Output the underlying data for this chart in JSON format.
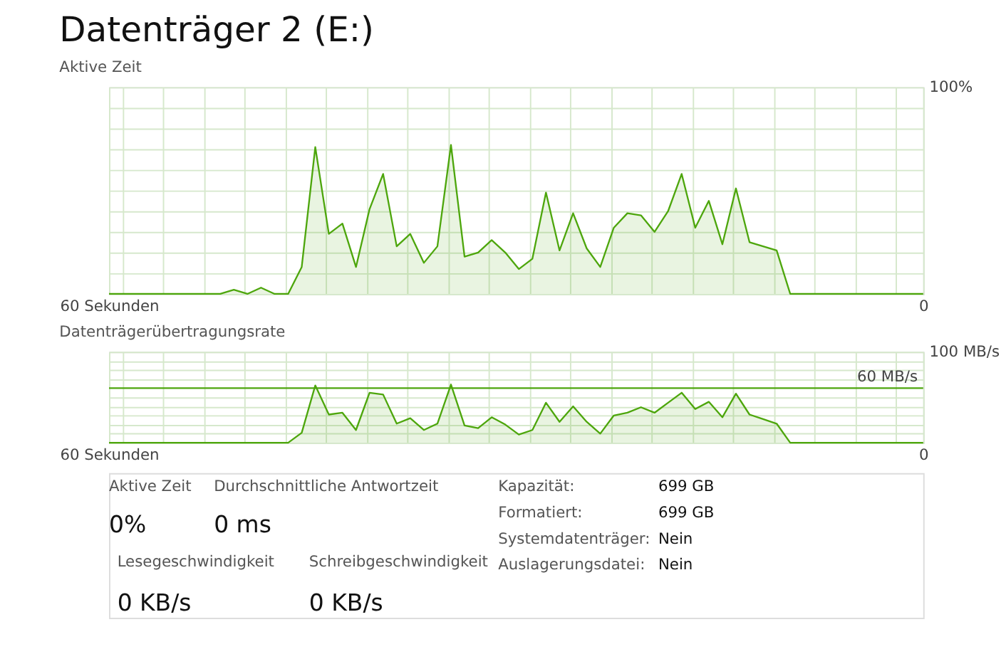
{
  "chart_data": [
    {
      "type": "area",
      "title": "Datenträger 2 (E:)",
      "subtitle": "Aktive Zeit",
      "grid": true,
      "line_style": "solid",
      "xlim": [
        60,
        0
      ],
      "xticks": [
        {
          "value": 60,
          "label": "60 Sekunden"
        },
        {
          "value": 59,
          "label": null
        },
        {
          "value": 56,
          "label": null
        },
        {
          "value": 53,
          "label": null
        },
        {
          "value": 50,
          "label": null
        },
        {
          "value": 47,
          "label": null
        },
        {
          "value": 44,
          "label": null
        },
        {
          "value": 41,
          "label": null
        },
        {
          "value": 38,
          "label": null
        },
        {
          "value": 35,
          "label": null
        },
        {
          "value": 32,
          "label": null
        },
        {
          "value": 29,
          "label": null
        },
        {
          "value": 26,
          "label": null
        },
        {
          "value": 23,
          "label": null
        },
        {
          "value": 20,
          "label": null
        },
        {
          "value": 17,
          "label": null
        },
        {
          "value": 14,
          "label": null
        },
        {
          "value": 11,
          "label": null
        },
        {
          "value": 8,
          "label": null
        },
        {
          "value": 5,
          "label": null
        },
        {
          "value": 2,
          "label": null
        },
        {
          "value": 0,
          "label": "0"
        }
      ],
      "ylim": [
        0,
        100
      ],
      "yticks": [
        {
          "value": 0,
          "label": null
        },
        {
          "value": 10,
          "label": null
        },
        {
          "value": 20,
          "label": null
        },
        {
          "value": 30,
          "label": null
        },
        {
          "value": 40,
          "label": null
        },
        {
          "value": 50,
          "label": null
        },
        {
          "value": 60,
          "label": null
        },
        {
          "value": 70,
          "label": null
        },
        {
          "value": 80,
          "label": null
        },
        {
          "value": 90,
          "label": null
        },
        {
          "value": 100,
          "label": "100%"
        }
      ],
      "series": [
        {
          "color": "#4da60c",
          "x": [
            60,
            51.8,
            50.8,
            49.8,
            48.8,
            47.8,
            46.8,
            45.8,
            44.8,
            43.8,
            42.8,
            41.8,
            40.8,
            39.8,
            38.8,
            37.8,
            36.8,
            35.8,
            34.8,
            33.8,
            32.8,
            31.8,
            30.8,
            29.8,
            28.8,
            27.8,
            26.8,
            25.8,
            24.8,
            23.8,
            22.8,
            21.8,
            20.8,
            19.8,
            18.8,
            17.8,
            16.8,
            15.8,
            14.8,
            13.8,
            12.8,
            11.8,
            10.8,
            9.8,
            0
          ],
          "values": [
            0,
            0,
            2,
            0,
            3,
            0,
            0,
            13,
            71,
            29,
            34,
            13,
            41,
            58,
            23,
            29,
            15,
            23,
            72,
            18,
            20,
            26,
            20,
            12,
            17,
            49,
            21,
            39,
            22,
            13,
            32,
            39,
            38,
            30,
            40,
            58,
            32,
            45,
            24,
            51,
            25,
            23,
            21,
            0,
            0
          ]
        }
      ]
    },
    {
      "type": "area",
      "title": "Datenträgerübertragungsrate",
      "grid": true,
      "line_style": "solid",
      "xlim": [
        60,
        0
      ],
      "xticks": [
        {
          "value": 60,
          "label": "60 Sekunden"
        },
        {
          "value": 59,
          "label": null
        },
        {
          "value": 56,
          "label": null
        },
        {
          "value": 53,
          "label": null
        },
        {
          "value": 50,
          "label": null
        },
        {
          "value": 47,
          "label": null
        },
        {
          "value": 44,
          "label": null
        },
        {
          "value": 41,
          "label": null
        },
        {
          "value": 38,
          "label": null
        },
        {
          "value": 35,
          "label": null
        },
        {
          "value": 32,
          "label": null
        },
        {
          "value": 29,
          "label": null
        },
        {
          "value": 26,
          "label": null
        },
        {
          "value": 23,
          "label": null
        },
        {
          "value": 20,
          "label": null
        },
        {
          "value": 17,
          "label": null
        },
        {
          "value": 14,
          "label": null
        },
        {
          "value": 11,
          "label": null
        },
        {
          "value": 8,
          "label": null
        },
        {
          "value": 5,
          "label": null
        },
        {
          "value": 2,
          "label": null
        },
        {
          "value": 0,
          "label": "0"
        }
      ],
      "ylim": [
        0,
        100
      ],
      "yticks": [
        {
          "value": 0,
          "label": null
        },
        {
          "value": 10,
          "label": null
        },
        {
          "value": 20,
          "label": null
        },
        {
          "value": 30,
          "label": null
        },
        {
          "value": 40,
          "label": null
        },
        {
          "value": 50,
          "label": null
        },
        {
          "value": 70,
          "label": null
        },
        {
          "value": 80,
          "label": null
        },
        {
          "value": 90,
          "label": null
        },
        {
          "value": 100,
          "label": "100 MB/s"
        }
      ],
      "ref_lines": [
        {
          "axis": "y",
          "value": 60,
          "label": "60 MB/s",
          "color": "#4da60c"
        }
      ],
      "series": [
        {
          "color": "#4da60c",
          "x": [
            60,
            46.8,
            45.8,
            44.8,
            43.8,
            42.8,
            41.8,
            40.8,
            39.8,
            38.8,
            37.8,
            36.8,
            35.8,
            34.8,
            33.8,
            32.8,
            31.8,
            30.8,
            29.8,
            28.8,
            27.8,
            26.8,
            25.8,
            24.8,
            23.8,
            22.8,
            21.8,
            20.8,
            19.8,
            18.8,
            17.8,
            16.8,
            15.8,
            14.8,
            13.8,
            12.8,
            11.8,
            10.8,
            9.8,
            0
          ],
          "values": [
            0,
            0,
            11,
            63,
            31,
            33,
            14,
            55,
            53,
            21,
            27,
            14,
            21,
            64,
            19,
            16,
            28,
            20,
            9,
            14,
            44,
            23,
            40,
            23,
            10,
            30,
            33,
            39,
            33,
            44,
            55,
            37,
            45,
            28,
            54,
            31,
            26,
            21,
            0,
            0
          ]
        }
      ]
    },
    {
      "type": "other",
      "annotations": [
        "Aktive Zeit",
        "0%",
        "Durchschnittliche Antwortzeit",
        "0 ms",
        "Lesegeschwindigkeit",
        "0 KB/s",
        "Schreibgeschwindigkeit",
        "0 KB/s",
        "Kapazität:",
        "699 GB",
        "Formatiert:",
        "699 GB",
        "Systemdatenträger:",
        "Nein",
        "Auslagerungsdatei:",
        "Nein"
      ]
    }
  ]
}
